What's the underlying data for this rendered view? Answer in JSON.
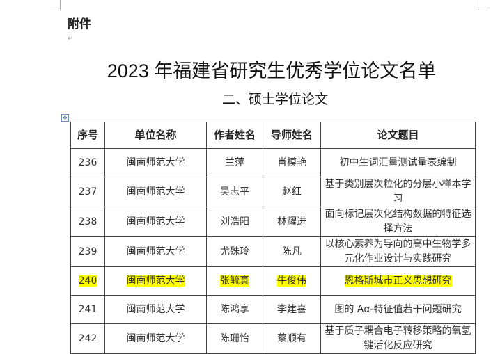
{
  "attachment_label": "附件",
  "title": "2023 年福建省研究生优秀学位论文名单",
  "subtitle": "二、硕士学位论文",
  "table": {
    "headers": [
      "序号",
      "单位名称",
      "作者姓名",
      "导师姓名",
      "论文题目"
    ],
    "rows": [
      {
        "no": "236",
        "unit": "闽南师范大学",
        "author": "兰萍",
        "advisor": "肖模艳",
        "title": "初中生词汇量测试量表编制",
        "highlight": false
      },
      {
        "no": "237",
        "unit": "闽南师范大学",
        "author": "吴志平",
        "advisor": "赵红",
        "title": "基于类别层次粒化的分层小样本学习",
        "highlight": false
      },
      {
        "no": "238",
        "unit": "闽南师范大学",
        "author": "刘浩阳",
        "advisor": "林耀进",
        "title": "面向标记层次化结构数据的特征选择方法",
        "highlight": false
      },
      {
        "no": "239",
        "unit": "闽南师范大学",
        "author": "尤殊玲",
        "advisor": "陈凡",
        "title": "以核心素养为导向的高中生物学多元化作业设计与实践研究",
        "highlight": false
      },
      {
        "no": "240",
        "unit": "闽南师范大学",
        "author": "张毓真",
        "advisor": "牛俊伟",
        "title": "恩格斯城市正义思想研究",
        "highlight": true
      },
      {
        "no": "241",
        "unit": "闽南师范大学",
        "author": "陈鸿享",
        "advisor": "李建喜",
        "title": "图的 Aα-特征值若干问题研究",
        "highlight": false
      },
      {
        "no": "242",
        "unit": "闽南师范大学",
        "author": "陈珊怡",
        "advisor": "蔡顺有",
        "title": "基于质子耦合电子转移策略的氧氢键活化反应研究",
        "highlight": false
      }
    ]
  },
  "colors": {
    "highlight": "#ffff00"
  }
}
